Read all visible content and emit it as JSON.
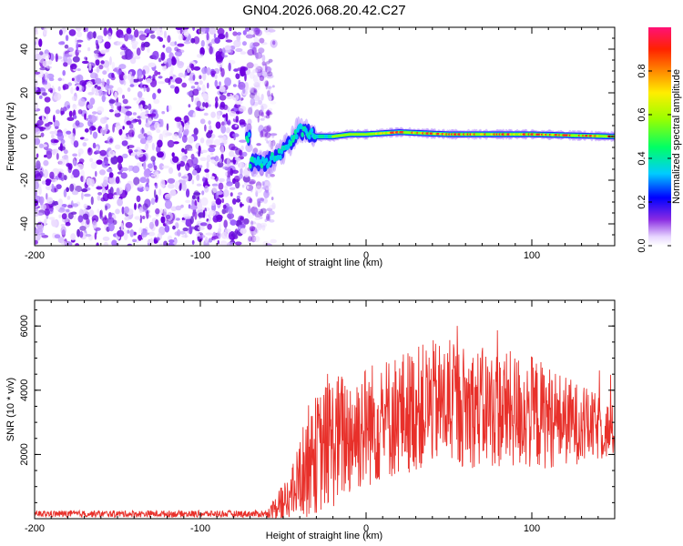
{
  "title": "GN04.2026.068.20.42.C27",
  "chart_data": [
    {
      "type": "heatmap",
      "xlabel": "Height of straight line (km)",
      "ylabel": "Frequency (Hz)",
      "xlim": [
        -200,
        150
      ],
      "ylim": [
        -50,
        50
      ],
      "x_ticks": [
        -200,
        -100,
        0,
        100
      ],
      "y_ticks": [
        -40,
        -20,
        0,
        20,
        40
      ],
      "noise_region_x": [
        -200,
        -60
      ],
      "signal_track": [
        {
          "x": -70,
          "y": -12
        },
        {
          "x": -60,
          "y": -12
        },
        {
          "x": -52,
          "y": -8
        },
        {
          "x": -45,
          "y": -2
        },
        {
          "x": -40,
          "y": 3
        },
        {
          "x": -30,
          "y": 0
        },
        {
          "x": -20,
          "y": 0
        },
        {
          "x": -10,
          "y": 1
        },
        {
          "x": 0,
          "y": 1
        },
        {
          "x": 20,
          "y": 2
        },
        {
          "x": 50,
          "y": 1
        },
        {
          "x": 100,
          "y": 1
        },
        {
          "x": 150,
          "y": 0
        }
      ],
      "colorbar": {
        "label": "Normalized spectral amplitude",
        "range": [
          0.0,
          1.0
        ],
        "ticks": [
          "0.0",
          "0.2",
          "0.4",
          "0.6",
          "0.8"
        ],
        "placement": "right"
      }
    },
    {
      "type": "line",
      "xlabel": "Height of straight line (km)",
      "ylabel": "SNR (10 * v/v)",
      "xlim": [
        -200,
        150
      ],
      "ylim": [
        0,
        6800
      ],
      "x_ticks": [
        -200,
        -100,
        0,
        100
      ],
      "y_ticks": [
        2000,
        4000,
        6000
      ],
      "series_color": "#e8302a",
      "envelope": [
        {
          "x": -200,
          "base": 150,
          "spread": 150
        },
        {
          "x": -60,
          "base": 150,
          "spread": 150
        },
        {
          "x": -45,
          "base": 700,
          "spread": 1200
        },
        {
          "x": -35,
          "base": 1800,
          "spread": 2500
        },
        {
          "x": -20,
          "base": 2400,
          "spread": 3000
        },
        {
          "x": 0,
          "base": 2900,
          "spread": 2800
        },
        {
          "x": 40,
          "base": 3600,
          "spread": 2800
        },
        {
          "x": 100,
          "base": 3300,
          "spread": 2600
        },
        {
          "x": 150,
          "base": 2700,
          "spread": 1200
        }
      ]
    }
  ]
}
